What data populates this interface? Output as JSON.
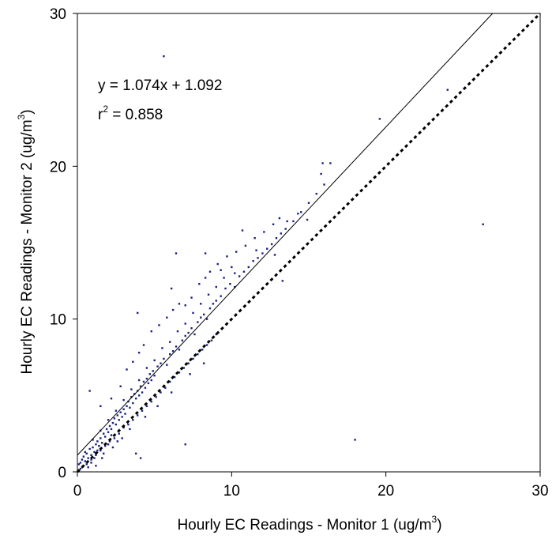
{
  "chart_data": {
    "type": "scatter",
    "title": "",
    "xlabel": {
      "text": "Hourly EC Readings - Monitor 1 (ug/m",
      "sup": "3",
      "close": ")"
    },
    "ylabel": {
      "text": "Hourly EC Readings - Monitor 2 (ug/m",
      "sup": "3",
      "close": ")"
    },
    "xlim": [
      0,
      30
    ],
    "ylim": [
      0,
      30
    ],
    "xticks": [
      0,
      10,
      20,
      30
    ],
    "yticks": [
      0,
      10,
      20,
      30
    ],
    "grid": false,
    "annotations": {
      "equation": "y = 1.074x + 1.092",
      "r2_prefix": "r",
      "r2_sup": "2",
      "r2_value": " = 0.858"
    },
    "lines": [
      {
        "kind": "regression",
        "style": "solid",
        "slope": 1.074,
        "intercept": 1.092
      },
      {
        "kind": "one-to-one",
        "style": "dotted",
        "slope": 1.0,
        "intercept": 0.0
      }
    ],
    "marker_color": "#1a237e",
    "points": [
      [
        0.1,
        0.5
      ],
      [
        0.2,
        0.6
      ],
      [
        0.3,
        0.8
      ],
      [
        0.4,
        1.0
      ],
      [
        0.5,
        0.7
      ],
      [
        0.6,
        1.2
      ],
      [
        0.7,
        0.9
      ],
      [
        0.8,
        1.5
      ],
      [
        0.9,
        1.1
      ],
      [
        1.0,
        1.6
      ],
      [
        1.1,
        1.3
      ],
      [
        1.2,
        1.8
      ],
      [
        1.3,
        2.0
      ],
      [
        1.4,
        1.7
      ],
      [
        1.5,
        2.2
      ],
      [
        1.6,
        1.9
      ],
      [
        1.7,
        2.5
      ],
      [
        1.8,
        2.3
      ],
      [
        1.9,
        2.8
      ],
      [
        2.0,
        2.6
      ],
      [
        2.1,
        3.0
      ],
      [
        2.2,
        2.8
      ],
      [
        2.3,
        3.2
      ],
      [
        2.4,
        3.5
      ],
      [
        2.5,
        3.1
      ],
      [
        2.6,
        3.7
      ],
      [
        2.7,
        3.4
      ],
      [
        2.8,
        3.9
      ],
      [
        2.9,
        3.6
      ],
      [
        3.0,
        4.1
      ],
      [
        3.1,
        3.8
      ],
      [
        3.2,
        4.3
      ],
      [
        3.3,
        4.6
      ],
      [
        3.4,
        4.2
      ],
      [
        3.5,
        4.9
      ],
      [
        3.6,
        4.5
      ],
      [
        3.7,
        5.1
      ],
      [
        3.8,
        4.8
      ],
      [
        3.9,
        5.3
      ],
      [
        4.0,
        5.0
      ],
      [
        4.1,
        5.6
      ],
      [
        4.2,
        5.2
      ],
      [
        4.3,
        5.9
      ],
      [
        4.4,
        5.5
      ],
      [
        4.5,
        6.1
      ],
      [
        4.6,
        5.8
      ],
      [
        4.7,
        6.4
      ],
      [
        4.8,
        6.0
      ],
      [
        4.9,
        6.6
      ],
      [
        5.0,
        6.3
      ],
      [
        5.2,
        6.9
      ],
      [
        5.4,
        7.1
      ],
      [
        5.6,
        7.4
      ],
      [
        5.8,
        7.0
      ],
      [
        6.0,
        7.7
      ],
      [
        6.2,
        7.9
      ],
      [
        6.4,
        8.2
      ],
      [
        6.6,
        8.0
      ],
      [
        6.8,
        8.6
      ],
      [
        7.0,
        8.9
      ],
      [
        7.2,
        9.1
      ],
      [
        7.4,
        9.4
      ],
      [
        7.6,
        9.0
      ],
      [
        7.8,
        9.8
      ],
      [
        8.0,
        10.1
      ],
      [
        8.2,
        10.3
      ],
      [
        8.4,
        10.0
      ],
      [
        8.6,
        10.7
      ],
      [
        8.8,
        11.0
      ],
      [
        9.0,
        11.2
      ],
      [
        9.3,
        11.5
      ],
      [
        9.6,
        12.0
      ],
      [
        9.9,
        12.3
      ],
      [
        10.2,
        12.1
      ],
      [
        10.5,
        12.8
      ],
      [
        10.8,
        13.1
      ],
      [
        11.1,
        13.4
      ],
      [
        11.4,
        13.8
      ],
      [
        11.7,
        14.0
      ],
      [
        12.0,
        14.3
      ],
      [
        12.3,
        14.6
      ],
      [
        12.6,
        14.9
      ],
      [
        12.9,
        15.3
      ],
      [
        13.2,
        15.6
      ],
      [
        13.5,
        15.9
      ],
      [
        14.0,
        16.4
      ],
      [
        14.5,
        17.0
      ],
      [
        15.0,
        17.6
      ],
      [
        15.5,
        18.2
      ],
      [
        16.0,
        18.8
      ],
      [
        0.3,
        0.3
      ],
      [
        0.6,
        0.5
      ],
      [
        0.9,
        0.8
      ],
      [
        1.2,
        1.1
      ],
      [
        1.5,
        1.4
      ],
      [
        1.8,
        1.7
      ],
      [
        2.1,
        2.0
      ],
      [
        2.4,
        2.2
      ],
      [
        2.7,
        2.5
      ],
      [
        3.0,
        2.9
      ],
      [
        3.3,
        3.1
      ],
      [
        3.6,
        3.4
      ],
      [
        3.9,
        3.7
      ],
      [
        4.2,
        4.0
      ],
      [
        4.5,
        4.3
      ],
      [
        4.8,
        4.6
      ],
      [
        5.1,
        4.9
      ],
      [
        5.4,
        5.2
      ],
      [
        5.7,
        5.5
      ],
      [
        6.0,
        5.9
      ],
      [
        6.3,
        6.2
      ],
      [
        6.6,
        6.5
      ],
      [
        6.9,
        6.8
      ],
      [
        7.2,
        7.1
      ],
      [
        7.5,
        7.4
      ],
      [
        7.8,
        7.7
      ],
      [
        8.1,
        8.0
      ],
      [
        8.4,
        8.3
      ],
      [
        8.7,
        8.6
      ],
      [
        9.0,
        9.0
      ],
      [
        0.5,
        1.3
      ],
      [
        1.0,
        2.1
      ],
      [
        1.5,
        2.7
      ],
      [
        2.0,
        3.4
      ],
      [
        2.5,
        4.0
      ],
      [
        3.0,
        4.7
      ],
      [
        3.5,
        5.4
      ],
      [
        4.0,
        6.0
      ],
      [
        4.5,
        6.8
      ],
      [
        5.0,
        7.3
      ],
      [
        5.5,
        8.1
      ],
      [
        6.0,
        8.5
      ],
      [
        6.5,
        9.2
      ],
      [
        7.0,
        9.7
      ],
      [
        7.5,
        10.4
      ],
      [
        8.0,
        11.0
      ],
      [
        8.5,
        11.6
      ],
      [
        9.0,
        12.1
      ],
      [
        9.5,
        12.7
      ],
      [
        10.0,
        13.4
      ],
      [
        0.8,
        5.3
      ],
      [
        1.5,
        4.3
      ],
      [
        2.2,
        4.8
      ],
      [
        2.8,
        5.6
      ],
      [
        3.2,
        6.7
      ],
      [
        3.6,
        7.2
      ],
      [
        4.0,
        7.8
      ],
      [
        4.3,
        8.3
      ],
      [
        4.8,
        9.2
      ],
      [
        5.3,
        9.6
      ],
      [
        5.8,
        10.1
      ],
      [
        6.2,
        10.6
      ],
      [
        6.6,
        11.0
      ],
      [
        7.0,
        10.9
      ],
      [
        7.4,
        11.4
      ],
      [
        7.9,
        12.3
      ],
      [
        8.3,
        12.7
      ],
      [
        8.6,
        13.1
      ],
      [
        9.1,
        13.6
      ],
      [
        9.7,
        14.1
      ],
      [
        10.3,
        14.4
      ],
      [
        10.9,
        14.8
      ],
      [
        11.5,
        15.3
      ],
      [
        12.1,
        15.7
      ],
      [
        12.7,
        16.2
      ],
      [
        13.1,
        16.6
      ],
      [
        13.6,
        16.4
      ],
      [
        14.3,
        16.9
      ],
      [
        15.8,
        19.5
      ],
      [
        15.9,
        20.2
      ],
      [
        16.4,
        20.2
      ],
      [
        19.6,
        23.1
      ],
      [
        24.0,
        25.0
      ],
      [
        5.6,
        27.2
      ],
      [
        6.4,
        14.3
      ],
      [
        8.3,
        14.3
      ],
      [
        26.3,
        16.2
      ],
      [
        18.0,
        2.1
      ],
      [
        7.0,
        1.8
      ],
      [
        4.1,
        0.9
      ],
      [
        3.8,
        1.2
      ],
      [
        3.9,
        10.4
      ],
      [
        6.1,
        12.0
      ],
      [
        10.2,
        13.0
      ],
      [
        12.8,
        14.2
      ],
      [
        13.3,
        12.5
      ],
      [
        14.9,
        16.5
      ],
      [
        11.6,
        14.5
      ],
      [
        10.7,
        15.8
      ],
      [
        9.3,
        13.2
      ],
      [
        1.2,
        0.4
      ],
      [
        1.6,
        0.9
      ],
      [
        2.3,
        1.6
      ],
      [
        2.9,
        2.2
      ],
      [
        3.4,
        2.8
      ],
      [
        4.4,
        3.6
      ],
      [
        5.2,
        4.3
      ],
      [
        6.1,
        5.2
      ],
      [
        7.3,
        6.4
      ],
      [
        8.2,
        7.1
      ],
      [
        0.2,
        0.2
      ],
      [
        0.4,
        0.4
      ],
      [
        0.7,
        0.3
      ],
      [
        0.9,
        0.6
      ],
      [
        1.1,
        0.9
      ],
      [
        1.3,
        1.4
      ],
      [
        1.7,
        1.2
      ],
      [
        2.0,
        1.8
      ],
      [
        2.2,
        2.4
      ],
      [
        2.6,
        2.0
      ]
    ]
  }
}
